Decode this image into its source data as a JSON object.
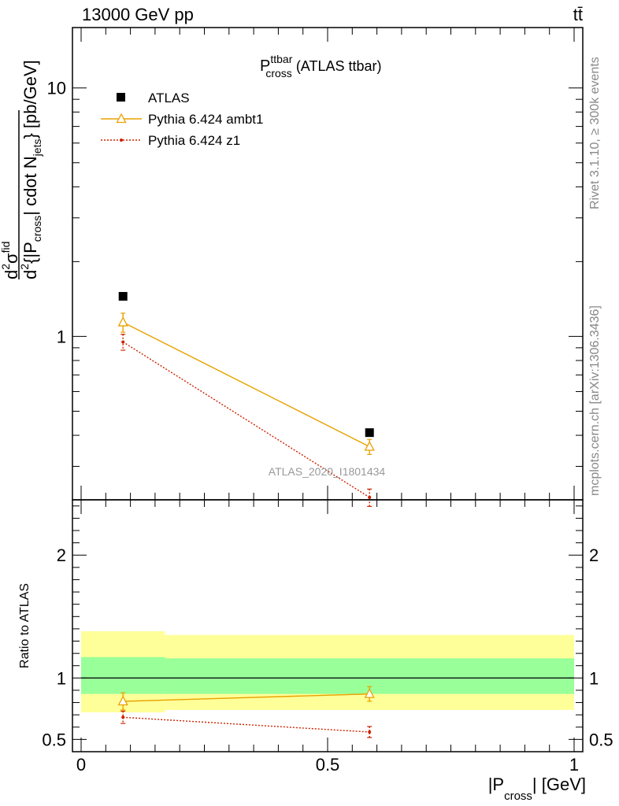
{
  "header": {
    "energy": "13000 GeV pp",
    "process": "tt̄"
  },
  "side_text": {
    "rivet": "Rivet 3.1.10, ≥ 300k events",
    "mcplots": "mcplots.cern.ch [arXiv:1306.3436]"
  },
  "watermark": "ATLAS_2020_I1801434",
  "plot_title": {
    "main": "P",
    "sup": "ttbar",
    "sub": "cross",
    "suffix": " (ATLAS ttbar)"
  },
  "y_label_upper": {
    "prefix": "d",
    "sup": "2",
    "mid": "σ",
    "sup2": "fid",
    "denom_1": "d",
    "denom_sup": "2",
    "denom_2": "{|P",
    "denom_sub": "cross",
    "denom_3": "| cdot N",
    "denom_sub2": "jets",
    "denom_4": "} [pb/GeV]"
  },
  "y_label_lower": "Ratio to ATLAS",
  "x_label": {
    "main": "|P",
    "sub": "cross",
    "suffix": "| [GeV]"
  },
  "chart_data": [
    {
      "type": "scatter",
      "panel": "main",
      "yscale": "log",
      "xlim": [
        0,
        1
      ],
      "ylim": [
        0.22,
        17.5
      ],
      "y_ticks": [
        {
          "value": 1,
          "label": "1"
        },
        {
          "value": 10,
          "label": "10"
        }
      ],
      "legend_placement": "top-left",
      "series": [
        {
          "name": "ATLAS",
          "color": "#000000",
          "marker": "filled-square",
          "x": [
            0.085,
            0.585
          ],
          "y": [
            1.45,
            0.41
          ],
          "err": [
            0.0,
            0.0
          ]
        },
        {
          "name": "Pythia 6.424 ambt1",
          "color": "#e8a200",
          "marker": "open-triangle",
          "line": "solid",
          "x": [
            0.085,
            0.585
          ],
          "y": [
            1.14,
            0.36
          ],
          "err": [
            0.1,
            0.025
          ]
        },
        {
          "name": "Pythia 6.424 z1",
          "color": "#cc2200",
          "marker": "dot",
          "line": "dotted",
          "x": [
            0.085,
            0.585
          ],
          "y": [
            0.95,
            0.225
          ],
          "err": [
            0.07,
            0.018
          ]
        }
      ]
    },
    {
      "type": "scatter",
      "panel": "ratio",
      "xlim": [
        0,
        1
      ],
      "ylim": [
        0.4,
        2.45
      ],
      "x_ticks": [
        {
          "value": 0,
          "label": "0"
        },
        {
          "value": 0.5,
          "label": "0.5"
        },
        {
          "value": 1,
          "label": "1"
        }
      ],
      "y_ticks": [
        {
          "value": 0.5,
          "label": "0.5"
        },
        {
          "value": 1,
          "label": "1"
        },
        {
          "value": 2,
          "label": "2"
        }
      ],
      "bands": [
        {
          "name": "total uncertainty",
          "color": "#ffff99",
          "bins": [
            {
              "x0": 0.0,
              "x1": 0.17,
              "lo": 0.72,
              "hi": 1.38
            },
            {
              "x0": 0.17,
              "x1": 1.0,
              "lo": 0.74,
              "hi": 1.35
            }
          ]
        },
        {
          "name": "stat uncertainty",
          "color": "#99ff99",
          "bins": [
            {
              "x0": 0.0,
              "x1": 0.17,
              "lo": 0.87,
              "hi": 1.17
            },
            {
              "x0": 0.17,
              "x1": 1.0,
              "lo": 0.87,
              "hi": 1.16
            }
          ]
        }
      ],
      "series": [
        {
          "name": "Pythia 6.424 ambt1",
          "color": "#e8a200",
          "x": [
            0.085,
            0.585
          ],
          "y": [
            0.81,
            0.87
          ],
          "err": [
            0.07,
            0.06
          ]
        },
        {
          "name": "Pythia 6.424 z1",
          "color": "#cc2200",
          "x": [
            0.085,
            0.585
          ],
          "y": [
            0.68,
            0.56
          ],
          "err": [
            0.05,
            0.045
          ]
        }
      ]
    }
  ]
}
